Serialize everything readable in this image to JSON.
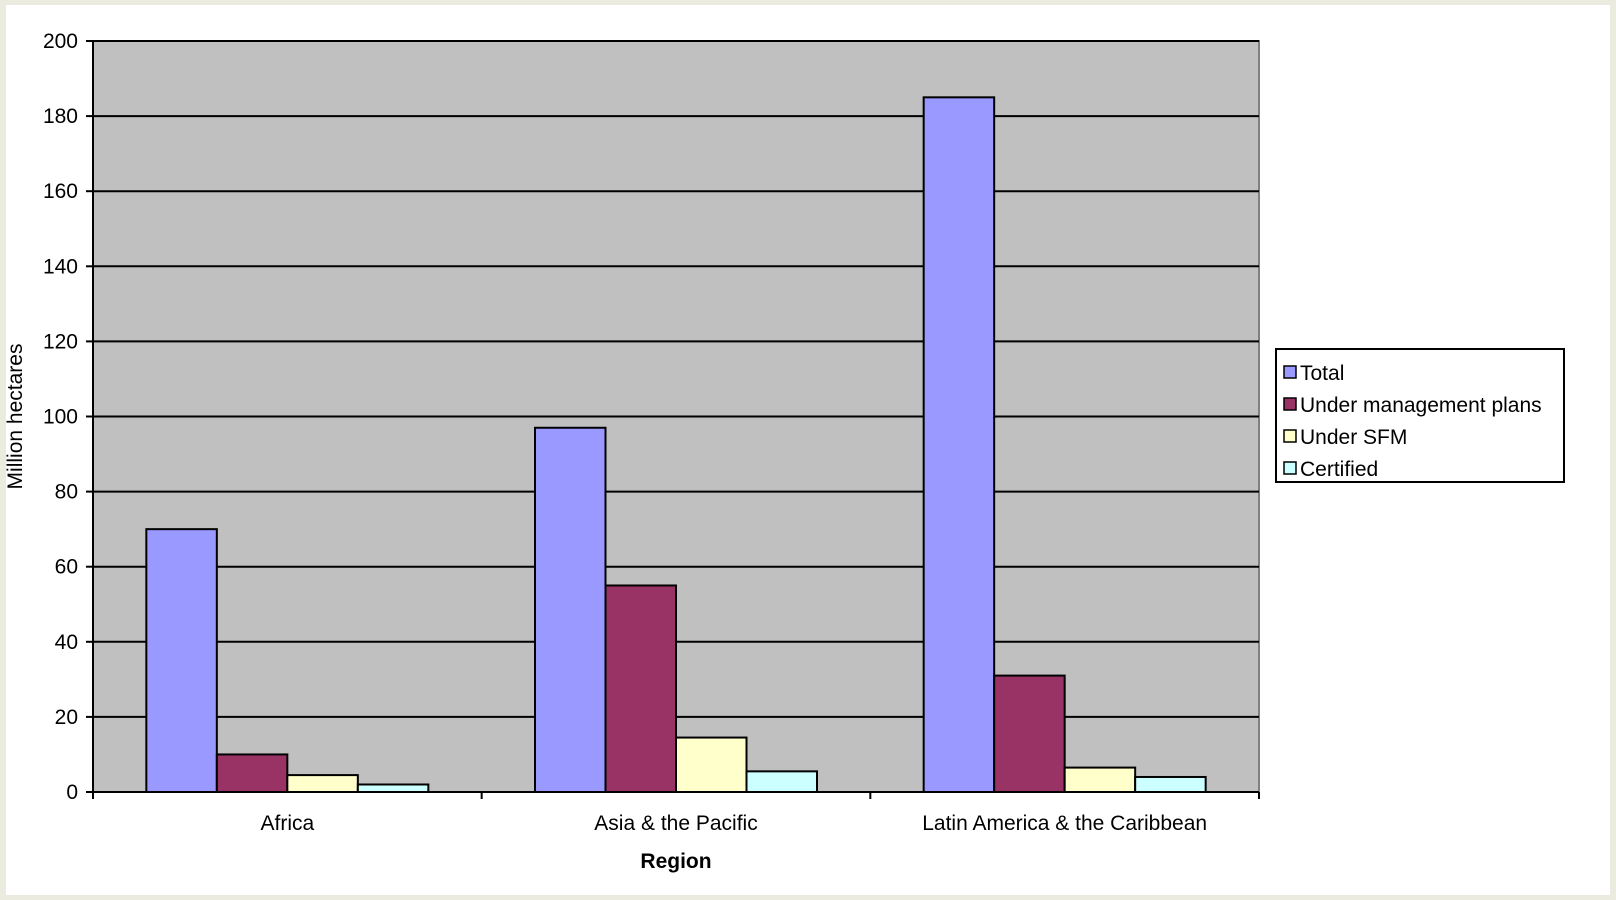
{
  "chart_data": {
    "type": "bar",
    "title": "",
    "xlabel": "Region",
    "ylabel": "Million hectares",
    "ylim": [
      0,
      200
    ],
    "yticks": [
      0,
      20,
      40,
      60,
      80,
      100,
      120,
      140,
      160,
      180,
      200
    ],
    "grid": true,
    "legend_position": "right",
    "categories": [
      "Africa",
      "Asia & the Pacific",
      "Latin America & the Caribbean"
    ],
    "series": [
      {
        "name": "Total",
        "color": "#9999ff",
        "values": [
          70,
          97,
          185
        ]
      },
      {
        "name": "Under management plans",
        "color": "#993366",
        "values": [
          10,
          55,
          31
        ]
      },
      {
        "name": "Under SFM",
        "color": "#ffffcc",
        "values": [
          4.5,
          14.5,
          6.5
        ]
      },
      {
        "name": "Certified",
        "color": "#ccffff",
        "values": [
          2,
          5.5,
          4
        ]
      }
    ],
    "plot_background": "#c0c0c0",
    "gridline_color": "#000000"
  }
}
